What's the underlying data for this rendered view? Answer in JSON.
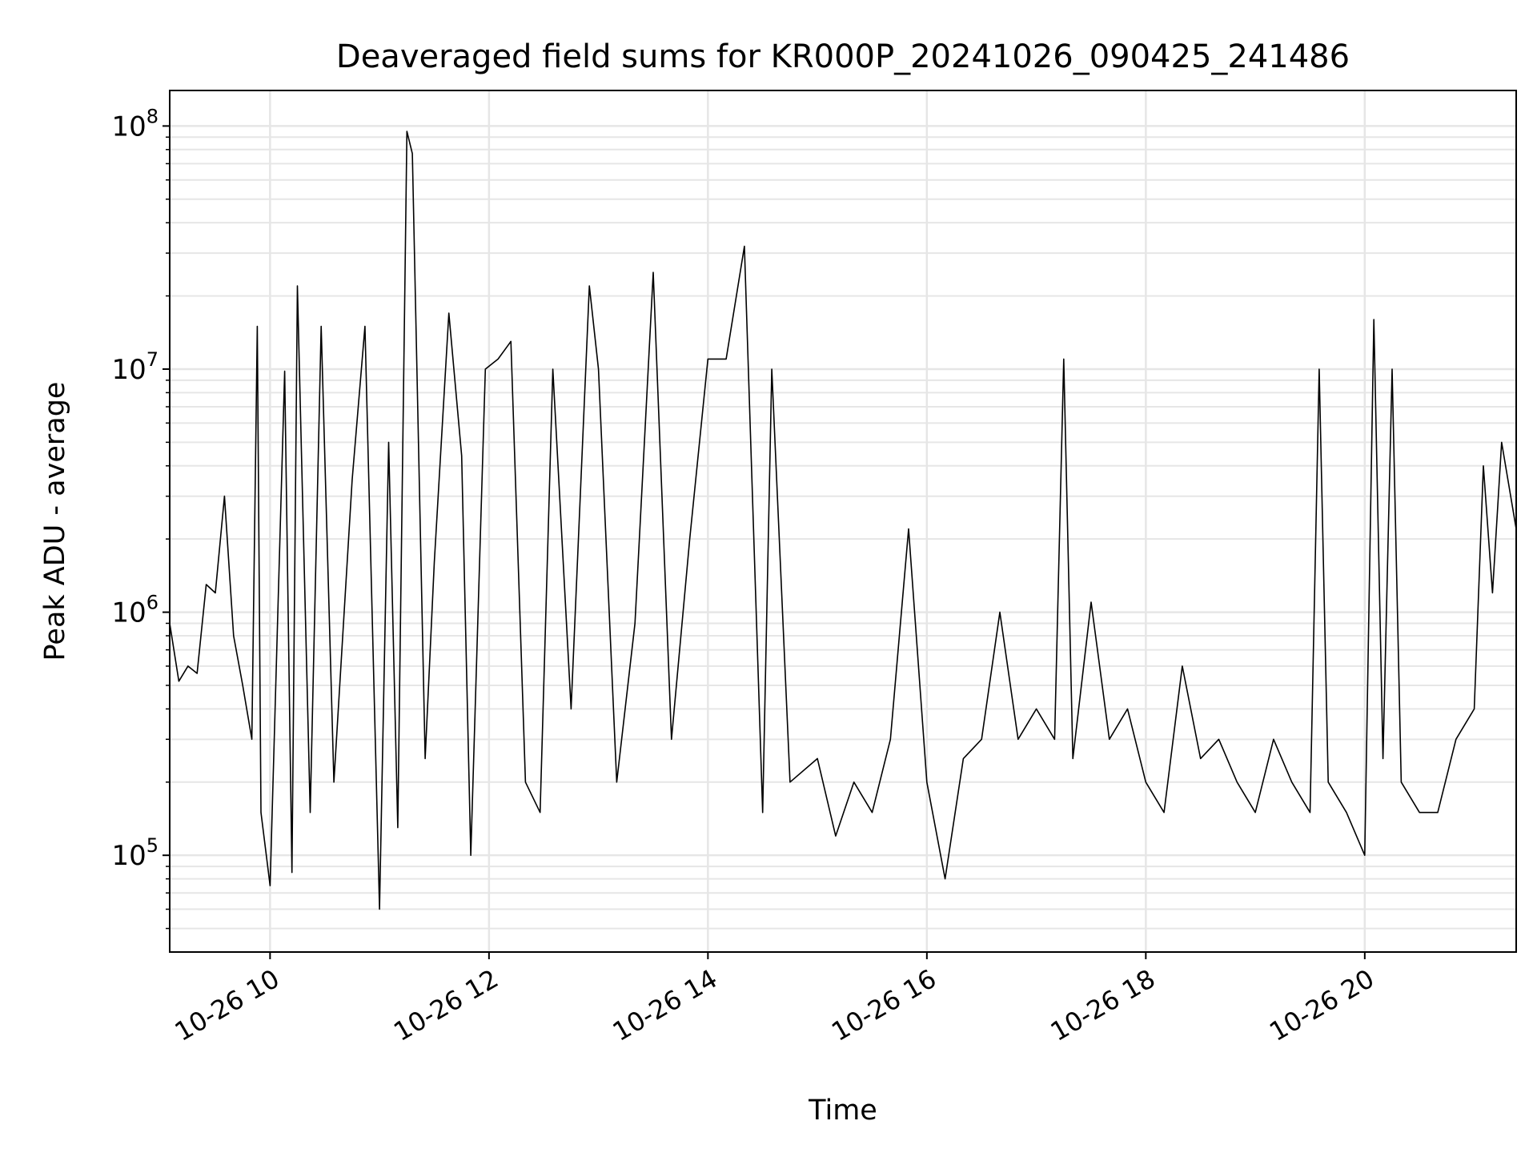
{
  "chart_data": {
    "type": "line",
    "title": "Deaveraged field sums for KR000P_20241026_090425_241486",
    "xlabel": "Time",
    "ylabel": "Peak ADU - average",
    "yscale": "log",
    "ylim": [
      40000,
      140000000
    ],
    "xlim": [
      "2024-10-26 09:05",
      "2024-10-26 21:23"
    ],
    "grid": "on (major and minor)",
    "x_ticks": [
      {
        "value": "2024-10-26 10:00",
        "label": "10-26 10"
      },
      {
        "value": "2024-10-26 12:00",
        "label": "10-26 12"
      },
      {
        "value": "2024-10-26 14:00",
        "label": "10-26 14"
      },
      {
        "value": "2024-10-26 16:00",
        "label": "10-26 16"
      },
      {
        "value": "2024-10-26 18:00",
        "label": "10-26 18"
      },
      {
        "value": "2024-10-26 20:00",
        "label": "10-26 20"
      }
    ],
    "y_ticks": [
      {
        "value": 100000,
        "base": "10",
        "exp": "5"
      },
      {
        "value": 1000000,
        "base": "10",
        "exp": "6"
      },
      {
        "value": 10000000,
        "base": "10",
        "exp": "7"
      },
      {
        "value": 100000000,
        "base": "10",
        "exp": "8"
      }
    ],
    "series": [
      {
        "color": "#000000",
        "points": [
          [
            "2024-10-26 09:05",
            900000
          ],
          [
            "2024-10-26 09:10",
            520000
          ],
          [
            "2024-10-26 09:15",
            600000
          ],
          [
            "2024-10-26 09:20",
            560000
          ],
          [
            "2024-10-26 09:25",
            1300000
          ],
          [
            "2024-10-26 09:30",
            1200000
          ],
          [
            "2024-10-26 09:35",
            3000000
          ],
          [
            "2024-10-26 09:40",
            800000
          ],
          [
            "2024-10-26 09:45",
            500000
          ],
          [
            "2024-10-26 09:50",
            300000
          ],
          [
            "2024-10-26 09:53",
            15000000
          ],
          [
            "2024-10-26 09:55",
            150000
          ],
          [
            "2024-10-26 10:00",
            75000
          ],
          [
            "2024-10-26 10:08",
            9800000
          ],
          [
            "2024-10-26 10:12",
            85000
          ],
          [
            "2024-10-26 10:15",
            22000000
          ],
          [
            "2024-10-26 10:22",
            150000
          ],
          [
            "2024-10-26 10:28",
            15000000
          ],
          [
            "2024-10-26 10:35",
            200000
          ],
          [
            "2024-10-26 10:45",
            3500000
          ],
          [
            "2024-10-26 10:52",
            15000000
          ],
          [
            "2024-10-26 11:00",
            60000
          ],
          [
            "2024-10-26 11:05",
            5000000
          ],
          [
            "2024-10-26 11:10",
            130000
          ],
          [
            "2024-10-26 11:15",
            95000000
          ],
          [
            "2024-10-26 11:18",
            77000000
          ],
          [
            "2024-10-26 11:25",
            250000
          ],
          [
            "2024-10-26 11:30",
            1600000
          ],
          [
            "2024-10-26 11:38",
            17000000
          ],
          [
            "2024-10-26 11:45",
            4400000
          ],
          [
            "2024-10-26 11:50",
            100000
          ],
          [
            "2024-10-26 11:58",
            10000000
          ],
          [
            "2024-10-26 12:05",
            11000000
          ],
          [
            "2024-10-26 12:12",
            13000000
          ],
          [
            "2024-10-26 12:20",
            200000
          ],
          [
            "2024-10-26 12:28",
            150000
          ],
          [
            "2024-10-26 12:35",
            10000000
          ],
          [
            "2024-10-26 12:45",
            400000
          ],
          [
            "2024-10-26 12:55",
            22000000
          ],
          [
            "2024-10-26 13:00",
            10000000
          ],
          [
            "2024-10-26 13:10",
            200000
          ],
          [
            "2024-10-26 13:20",
            900000
          ],
          [
            "2024-10-26 13:30",
            25000000
          ],
          [
            "2024-10-26 13:40",
            300000
          ],
          [
            "2024-10-26 13:50",
            2000000
          ],
          [
            "2024-10-26 14:00",
            11000000
          ],
          [
            "2024-10-26 14:10",
            11000000
          ],
          [
            "2024-10-26 14:20",
            32000000
          ],
          [
            "2024-10-26 14:30",
            150000
          ],
          [
            "2024-10-26 14:35",
            10000000
          ],
          [
            "2024-10-26 14:45",
            200000
          ],
          [
            "2024-10-26 15:00",
            250000
          ],
          [
            "2024-10-26 15:10",
            120000
          ],
          [
            "2024-10-26 15:20",
            200000
          ],
          [
            "2024-10-26 15:30",
            150000
          ],
          [
            "2024-10-26 15:40",
            300000
          ],
          [
            "2024-10-26 15:50",
            2200000
          ],
          [
            "2024-10-26 16:00",
            200000
          ],
          [
            "2024-10-26 16:10",
            80000
          ],
          [
            "2024-10-26 16:20",
            250000
          ],
          [
            "2024-10-26 16:30",
            300000
          ],
          [
            "2024-10-26 16:40",
            1000000
          ],
          [
            "2024-10-26 16:50",
            300000
          ],
          [
            "2024-10-26 17:00",
            400000
          ],
          [
            "2024-10-26 17:10",
            300000
          ],
          [
            "2024-10-26 17:15",
            11000000
          ],
          [
            "2024-10-26 17:20",
            250000
          ],
          [
            "2024-10-26 17:30",
            1100000
          ],
          [
            "2024-10-26 17:40",
            300000
          ],
          [
            "2024-10-26 17:50",
            400000
          ],
          [
            "2024-10-26 18:00",
            200000
          ],
          [
            "2024-10-26 18:10",
            150000
          ],
          [
            "2024-10-26 18:20",
            600000
          ],
          [
            "2024-10-26 18:30",
            250000
          ],
          [
            "2024-10-26 18:40",
            300000
          ],
          [
            "2024-10-26 18:50",
            200000
          ],
          [
            "2024-10-26 19:00",
            150000
          ],
          [
            "2024-10-26 19:10",
            300000
          ],
          [
            "2024-10-26 19:20",
            200000
          ],
          [
            "2024-10-26 19:30",
            150000
          ],
          [
            "2024-10-26 19:35",
            10000000
          ],
          [
            "2024-10-26 19:40",
            200000
          ],
          [
            "2024-10-26 19:50",
            150000
          ],
          [
            "2024-10-26 20:00",
            100000
          ],
          [
            "2024-10-26 20:05",
            16000000
          ],
          [
            "2024-10-26 20:10",
            250000
          ],
          [
            "2024-10-26 20:15",
            10000000
          ],
          [
            "2024-10-26 20:20",
            200000
          ],
          [
            "2024-10-26 20:30",
            150000
          ],
          [
            "2024-10-26 20:40",
            150000
          ],
          [
            "2024-10-26 20:50",
            300000
          ],
          [
            "2024-10-26 21:00",
            400000
          ],
          [
            "2024-10-26 21:05",
            4000000
          ],
          [
            "2024-10-26 21:10",
            1200000
          ],
          [
            "2024-10-26 21:15",
            5000000
          ],
          [
            "2024-10-26 21:23",
            2200000
          ]
        ]
      }
    ]
  }
}
